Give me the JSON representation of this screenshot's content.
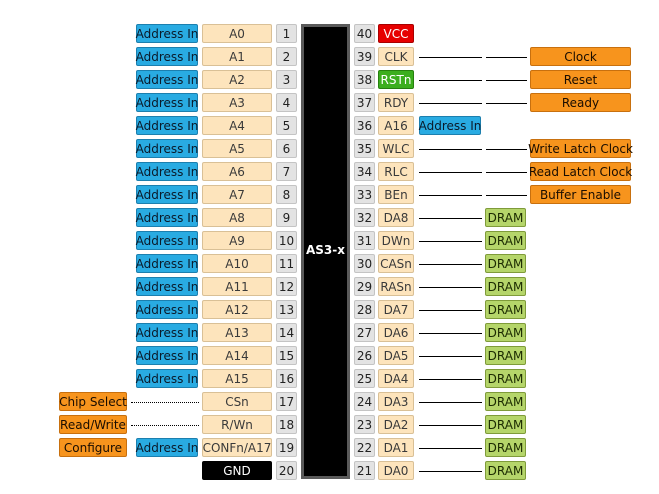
{
  "chip": {
    "name": "AS3-x"
  },
  "left_pins": [
    {
      "num": "1",
      "name": "A0",
      "ext": "Address In"
    },
    {
      "num": "2",
      "name": "A1",
      "ext": "Address In"
    },
    {
      "num": "3",
      "name": "A2",
      "ext": "Address In"
    },
    {
      "num": "4",
      "name": "A3",
      "ext": "Address In"
    },
    {
      "num": "5",
      "name": "A4",
      "ext": "Address In"
    },
    {
      "num": "6",
      "name": "A5",
      "ext": "Address In"
    },
    {
      "num": "7",
      "name": "A6",
      "ext": "Address In"
    },
    {
      "num": "8",
      "name": "A7",
      "ext": "Address In"
    },
    {
      "num": "9",
      "name": "A8",
      "ext": "Address In"
    },
    {
      "num": "10",
      "name": "A9",
      "ext": "Address In"
    },
    {
      "num": "11",
      "name": "A10",
      "ext": "Address In"
    },
    {
      "num": "12",
      "name": "A11",
      "ext": "Address In"
    },
    {
      "num": "13",
      "name": "A12",
      "ext": "Address In"
    },
    {
      "num": "14",
      "name": "A13",
      "ext": "Address In"
    },
    {
      "num": "15",
      "name": "A14",
      "ext": "Address In"
    },
    {
      "num": "16",
      "name": "A15",
      "ext": "Address In"
    },
    {
      "num": "17",
      "name": "CSn",
      "ext": "",
      "far": "Chip Select"
    },
    {
      "num": "18",
      "name": "R/Wn",
      "ext": "",
      "far": "Read/Write"
    },
    {
      "num": "19",
      "name": "CONFn/A17",
      "ext": "Address In",
      "far": "Configure"
    },
    {
      "num": "20",
      "name": "GND",
      "ext": "",
      "style": "black"
    }
  ],
  "right_pins": [
    {
      "num": "40",
      "name": "VCC",
      "style": "red"
    },
    {
      "num": "39",
      "name": "CLK",
      "ext": "Clock",
      "kind": "orange"
    },
    {
      "num": "38",
      "name": "RSTn",
      "style": "rstgreen",
      "ext": "Reset",
      "kind": "orange"
    },
    {
      "num": "37",
      "name": "RDY",
      "ext": "Ready",
      "kind": "orange"
    },
    {
      "num": "36",
      "name": "A16",
      "ext": "Address In",
      "kind": "blue-adjacent"
    },
    {
      "num": "35",
      "name": "WLC",
      "ext": "Write Latch Clock",
      "kind": "orange"
    },
    {
      "num": "34",
      "name": "RLC",
      "ext": "Read Latch Clock",
      "kind": "orange"
    },
    {
      "num": "33",
      "name": "BEn",
      "ext": "Buffer Enable",
      "kind": "orange"
    },
    {
      "num": "32",
      "name": "DA8",
      "ext": "DRAM",
      "kind": "green"
    },
    {
      "num": "31",
      "name": "DWn",
      "ext": "DRAM",
      "kind": "green"
    },
    {
      "num": "30",
      "name": "CASn",
      "ext": "DRAM",
      "kind": "green"
    },
    {
      "num": "29",
      "name": "RASn",
      "ext": "DRAM",
      "kind": "green"
    },
    {
      "num": "28",
      "name": "DA7",
      "ext": "DRAM",
      "kind": "green"
    },
    {
      "num": "27",
      "name": "DA6",
      "ext": "DRAM",
      "kind": "green"
    },
    {
      "num": "26",
      "name": "DA5",
      "ext": "DRAM",
      "kind": "green"
    },
    {
      "num": "25",
      "name": "DA4",
      "ext": "DRAM",
      "kind": "green"
    },
    {
      "num": "24",
      "name": "DA3",
      "ext": "DRAM",
      "kind": "green"
    },
    {
      "num": "23",
      "name": "DA2",
      "ext": "DRAM",
      "kind": "green"
    },
    {
      "num": "22",
      "name": "DA1",
      "ext": "DRAM",
      "kind": "green"
    },
    {
      "num": "21",
      "name": "DA0",
      "ext": "DRAM",
      "kind": "green"
    }
  ],
  "colors": {
    "address": "#29abe2",
    "control": "#f7941d",
    "pin_name": "#fde4bc",
    "dram": "#b5d56a",
    "pin_number": "#e3e3e3",
    "vcc": "#e60000",
    "reset": "#3cae1e"
  }
}
